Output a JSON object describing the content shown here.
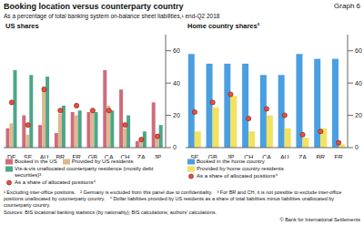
{
  "title": "Booking location versus counterparty country",
  "graph_label": "Graph 6",
  "subtitle": "As a percentage of total banking system on-balance sheet liabilities,¹ end-Q2 2018",
  "chart_data": [
    {
      "type": "bar",
      "title": "US shares",
      "categories": [
        "DE",
        "SE",
        "AU",
        "BR",
        "FR",
        "GB",
        "CA",
        "CH",
        "ZA",
        "JP"
      ],
      "series": [
        {
          "name": "Booked in the US",
          "color": "#cf6b7c",
          "values": [
            12,
            20,
            14,
            9,
            22,
            22,
            48,
            36,
            4,
            28
          ]
        },
        {
          "name": "Provided by US residents",
          "color": "#dcb98d",
          "values": [
            15,
            8,
            38,
            21,
            20,
            24,
            26,
            12,
            5,
            6
          ]
        },
        {
          "name": "Vis-à-vis unallocated counterparty residence (mostly debt securities)³",
          "color": "#4da58b",
          "values": [
            48,
            45,
            44,
            26,
            23,
            22,
            23,
            20,
            10,
            14
          ]
        },
        {
          "name": "As a share of allocated positions⁴",
          "color": "#e8503f",
          "type": "scatter",
          "marker": "circle",
          "values": [
            28,
            14,
            36,
            23,
            26,
            23,
            23,
            14,
            5,
            7
          ]
        }
      ],
      "ylim": [
        0,
        70
      ],
      "yticks": [
        0,
        20,
        40,
        60
      ],
      "grid": false,
      "legend": "bottom"
    },
    {
      "type": "bar",
      "title": "Home country shares²",
      "categories": [
        "SE",
        "GB",
        "JP",
        "CH",
        "CA",
        "AU",
        "ZA",
        "BR",
        "FR"
      ],
      "series": [
        {
          "name": "Booked in the home country",
          "color": "#4a9fe0",
          "values": [
            58,
            52,
            52,
            52,
            45,
            45,
            58,
            55,
            55
          ]
        },
        {
          "name": "Provided by home country residents",
          "color": "#f2e25f",
          "values": [
            10,
            25,
            32,
            10,
            20,
            12,
            6,
            12,
            2
          ]
        },
        {
          "name": "As a share of allocated positions⁴",
          "color": "#e8503f",
          "type": "scatter",
          "marker": "circle",
          "values": [
            22,
            28,
            33,
            18,
            24,
            20,
            8,
            10,
            3
          ]
        }
      ],
      "ylim": [
        0,
        70
      ],
      "yticks": [
        0,
        20,
        40,
        60
      ],
      "grid": false,
      "legend": "bottom"
    }
  ],
  "footnotes": [
    "¹ Excluding inter-office positions.",
    "² Germany is excluded from this panel due to confidentiality.",
    "³ For BR and CH, it is not possible to exclude inter-office positions unallocated by counterparty country.",
    "⁴ Dollar liabilities provided by US residents as a share of total liabilities minus liabilities unallocated by counterparty country."
  ],
  "sources": "Sources: BIS locational banking statistics (by nationality); BIS calculations; authors' calculations.",
  "copyright": "© Bank for International Settlements"
}
